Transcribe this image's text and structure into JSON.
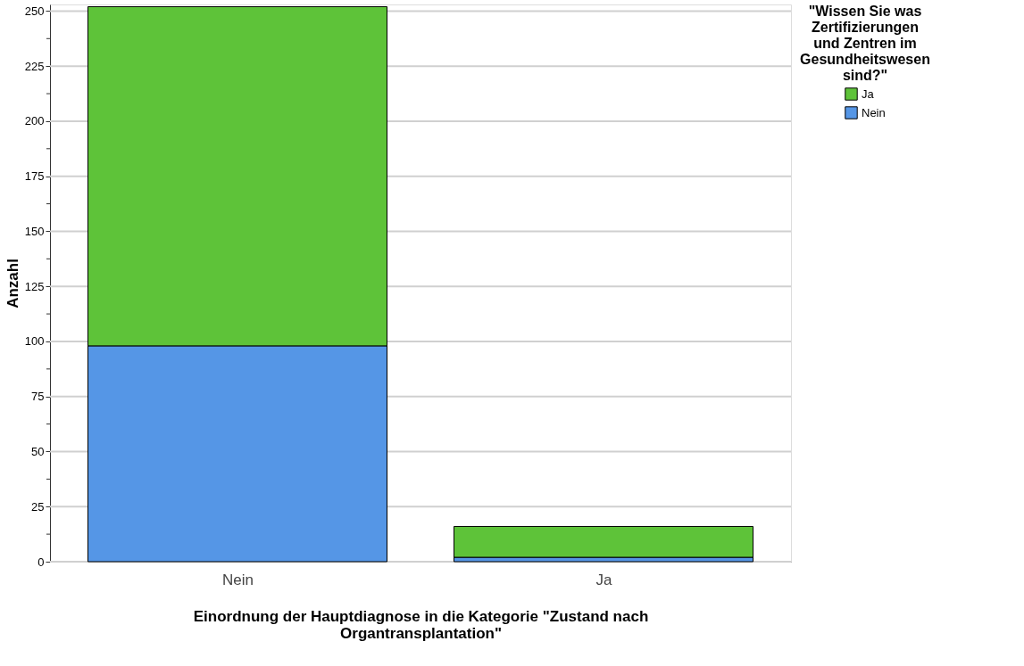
{
  "chart_data": {
    "type": "bar",
    "stacked": true,
    "categories": [
      "Nein",
      "Ja"
    ],
    "series": [
      {
        "name": "Nein",
        "color": "#5596e6",
        "values": [
          98,
          2
        ]
      },
      {
        "name": "Ja",
        "color": "#5ec339",
        "values": [
          154,
          14
        ]
      }
    ],
    "xlabel": "Einordnung der Hauptdiagnose in die Kategorie \"Zustand nach Organtransplantation\"",
    "ylabel": "Anzahl",
    "legend_title": "\"Wissen Sie was Zertifizierungen und Zentren im Gesundheitswesen sind?\"",
    "legend": "top right",
    "grid": "y",
    "ylim": [
      0,
      253
    ],
    "yticks": [
      0,
      {
        "value": 12.5,
        "label": null
      },
      25,
      {
        "value": 37.5,
        "label": null
      },
      50,
      {
        "value": 62.5,
        "label": null
      },
      75,
      {
        "value": 87.5,
        "label": null
      },
      100,
      {
        "value": 112.5,
        "label": null
      },
      125,
      {
        "value": 137.5,
        "label": null
      },
      150,
      {
        "value": 162.5,
        "label": null
      },
      175,
      {
        "value": 187.5,
        "label": null
      },
      200,
      {
        "value": 212.5,
        "label": null
      },
      225,
      {
        "value": 237.5,
        "label": null
      },
      250
    ]
  }
}
